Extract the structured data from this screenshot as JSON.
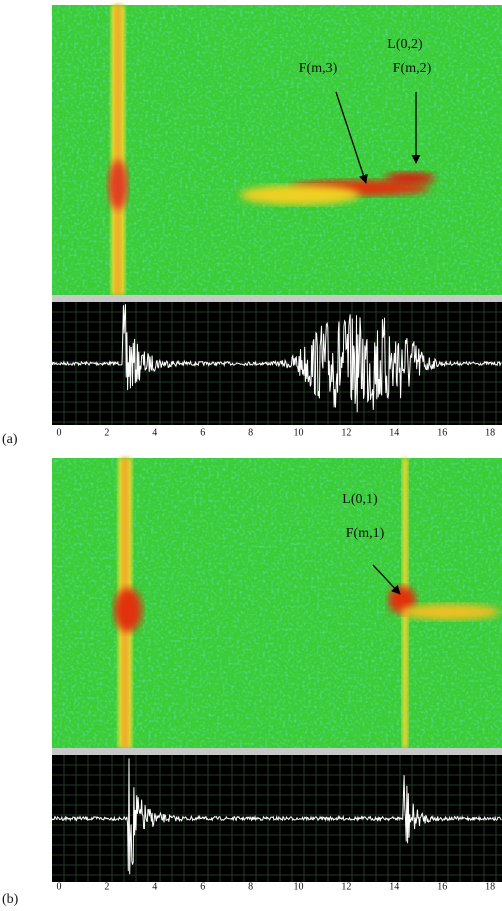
{
  "panels": [
    {
      "label": "(a)",
      "ticks": [
        0,
        2,
        4,
        6,
        8,
        10,
        12,
        14,
        16,
        18
      ],
      "annotations": [
        "L(0,2)",
        "F(m,3)",
        "F(m,2)"
      ]
    },
    {
      "label": "(b)",
      "ticks": [
        0,
        2,
        4,
        6,
        8,
        10,
        12,
        14,
        16,
        18
      ],
      "annotations": [
        "L(0,1)",
        "F(m,1)"
      ]
    }
  ]
}
